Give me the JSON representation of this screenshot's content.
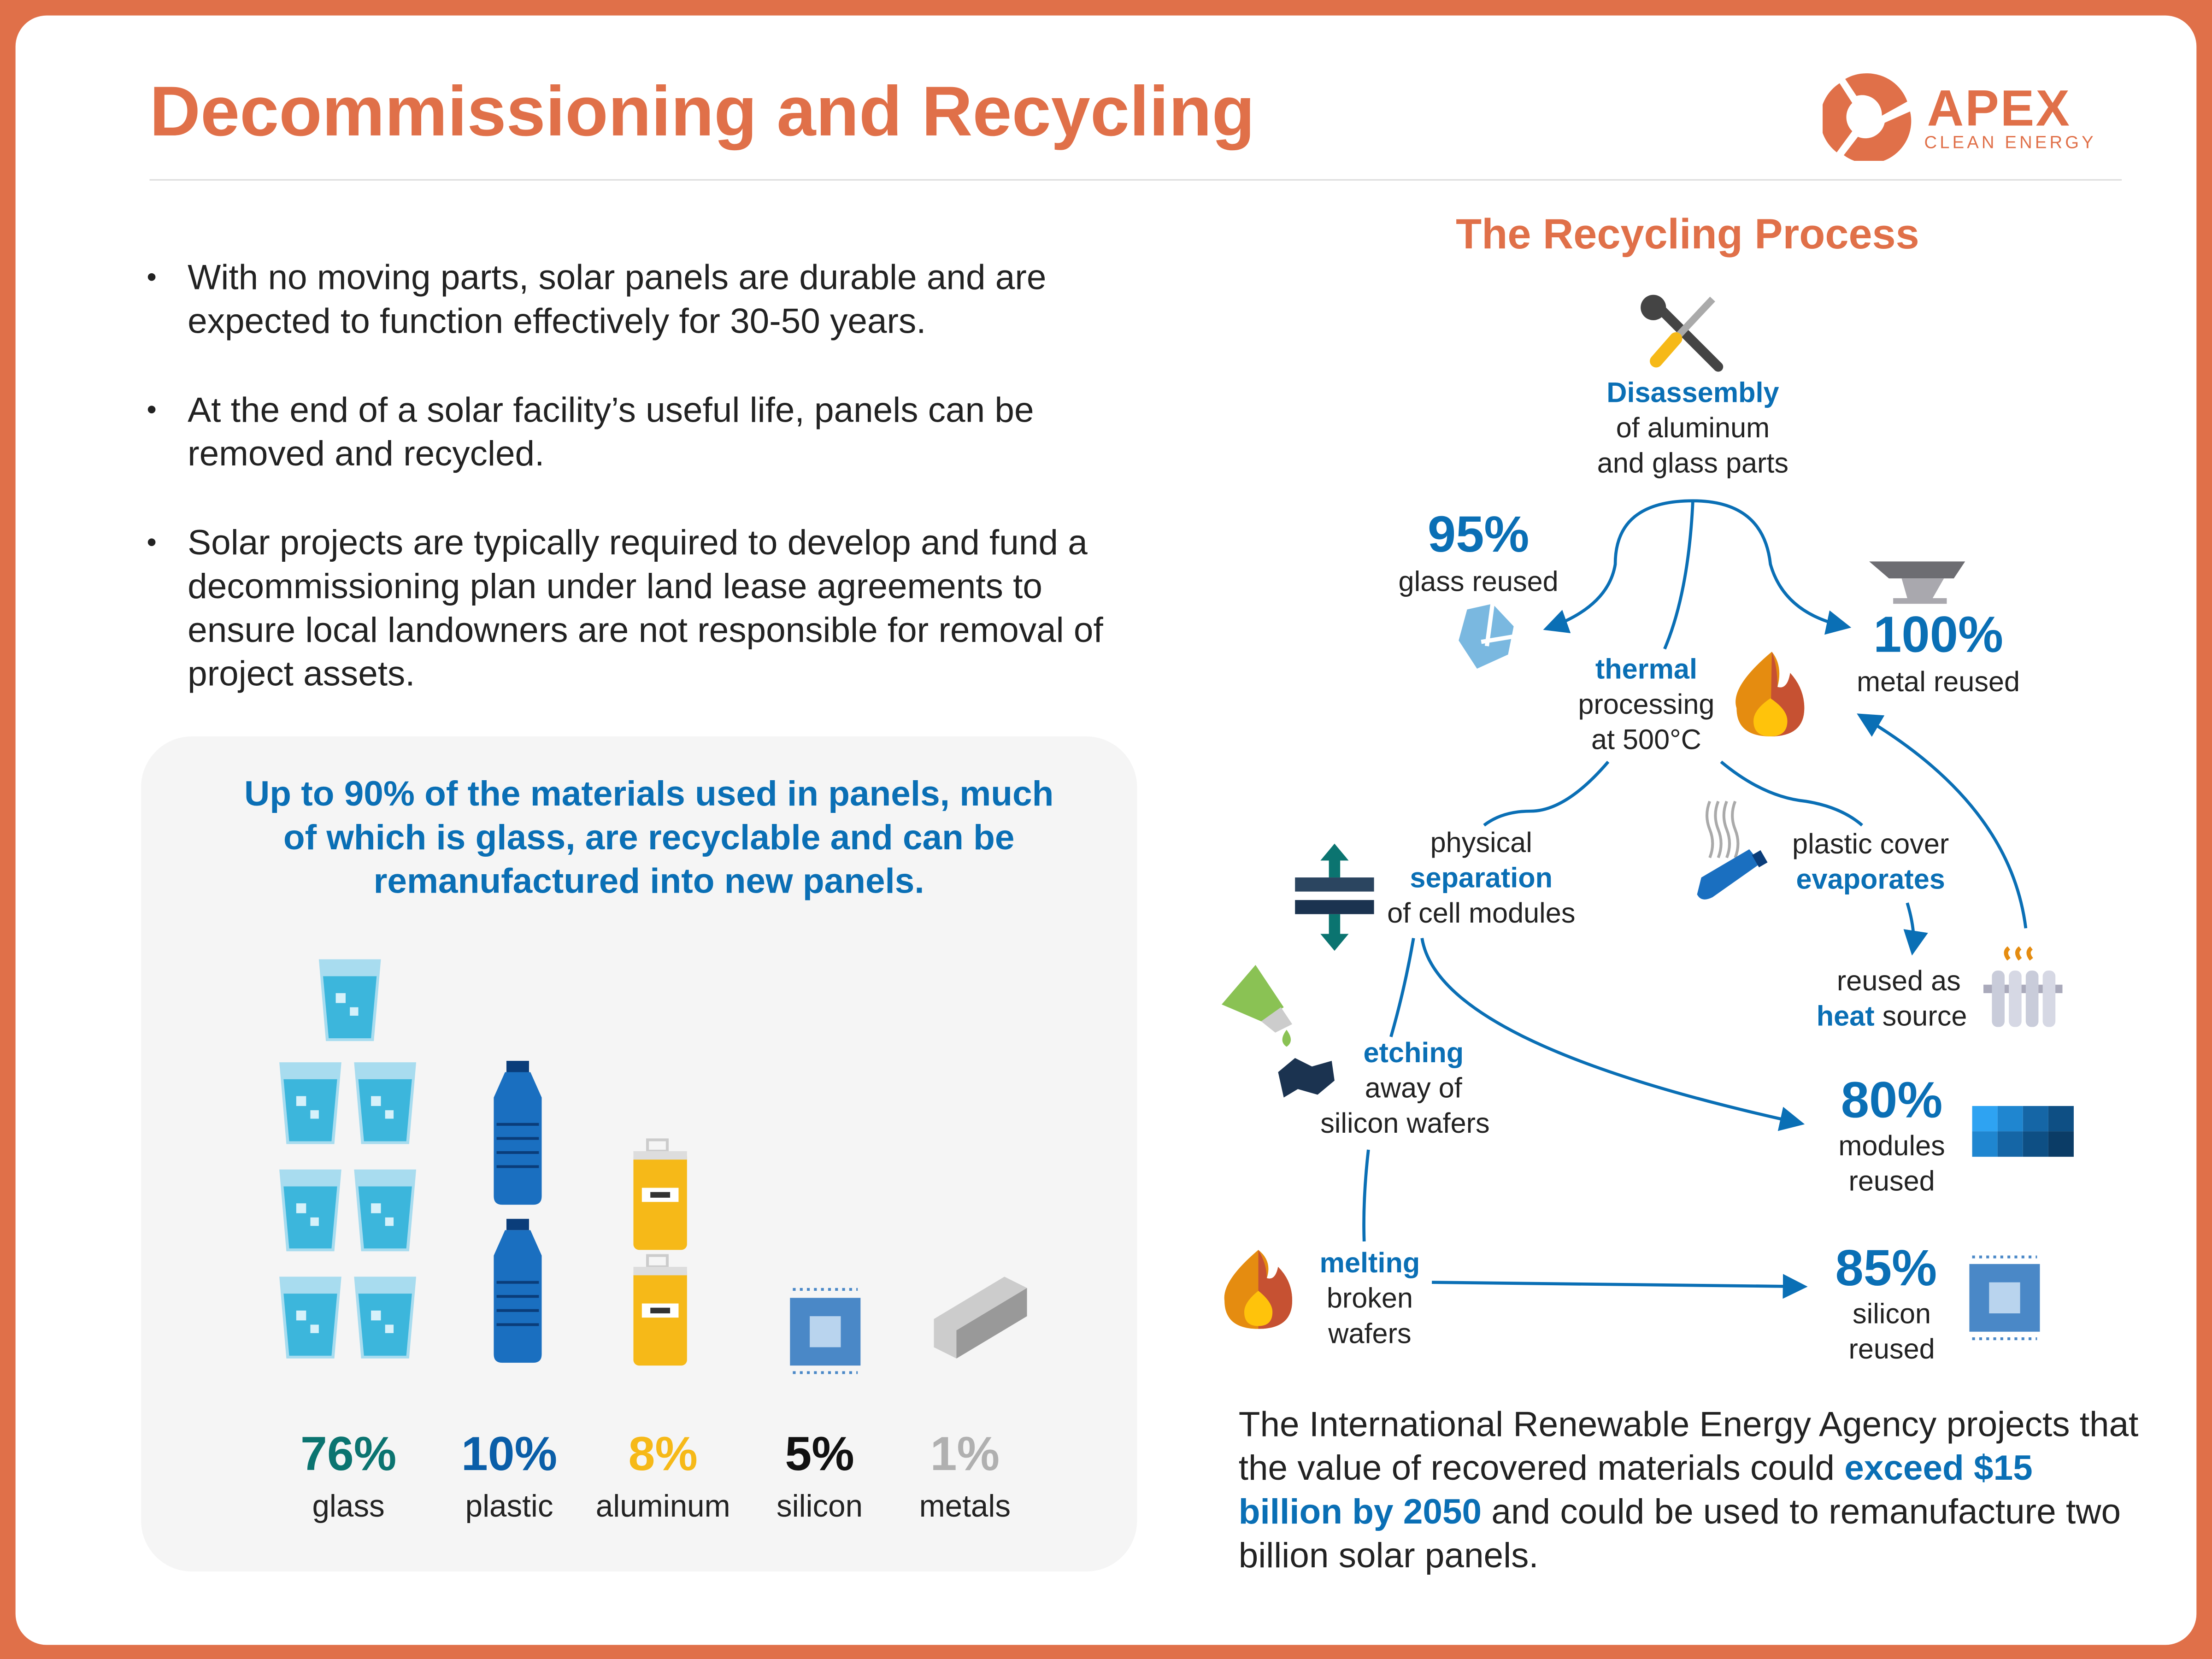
{
  "header": {
    "title": "Decommissioning and Recycling",
    "logo": {
      "name": "APEX",
      "tagline": "CLEAN ENERGY"
    }
  },
  "bullets": [
    "With no moving parts, solar panels are durable and are expected to function effectively for 30-50 years.",
    "At the end of a solar facility’s useful life, panels can be removed and recycled.",
    "Solar projects are typically required to develop and fund a decommissioning plan under land lease agreements to ensure local landowners are not responsible for removal of project assets."
  ],
  "materials": {
    "headline": "Up to 90% of the materials used in panels, much of which is glass, are recyclable and can be remanufactured into new panels.",
    "items": [
      {
        "percent": "76%",
        "label": "glass",
        "color": "#0b7470"
      },
      {
        "percent": "10%",
        "label": "plastic",
        "color": "#0a5ea8"
      },
      {
        "percent": "8%",
        "label": "aluminum",
        "color": "#f6b918"
      },
      {
        "percent": "5%",
        "label": "silicon",
        "color": "#111111"
      },
      {
        "percent": "1%",
        "label": "metals",
        "color": "#b0b0b0"
      }
    ]
  },
  "process": {
    "title": "The Recycling Process",
    "disassembly": {
      "bold": "Disassembly",
      "line2": "of aluminum",
      "line3": "and glass parts"
    },
    "glass": {
      "percent": "95%",
      "label": "glass reused"
    },
    "metal": {
      "percent": "100%",
      "label": "metal reused"
    },
    "thermal": {
      "bold": "thermal",
      "line2": "processing",
      "line3": "at 500°C"
    },
    "physical": {
      "line1": "physical",
      "bold": "separation",
      "line3": "of cell modules"
    },
    "plastic": {
      "line1": "plastic cover",
      "bold": "evaporates"
    },
    "heat": {
      "line1": "reused as",
      "bold": "heat",
      "rest": " source"
    },
    "etching": {
      "bold": "etching",
      "line2": "away of",
      "line3": "silicon wafers"
    },
    "modules": {
      "percent": "80%",
      "line1": "modules",
      "line2": "reused"
    },
    "melting": {
      "bold": "melting",
      "line2": "broken",
      "line3": "wafers"
    },
    "silicon": {
      "percent": "85%",
      "line1": "silicon",
      "line2": "reused"
    }
  },
  "footer": {
    "pre": "The International Renewable Energy Agency projects that the value of recovered materials could ",
    "bold": "exceed $15 billion by 2050",
    "post": " and could be used to remanufacture two billion solar panels."
  },
  "colors": {
    "accent": "#e07049",
    "blue": "#0a6fb5"
  }
}
